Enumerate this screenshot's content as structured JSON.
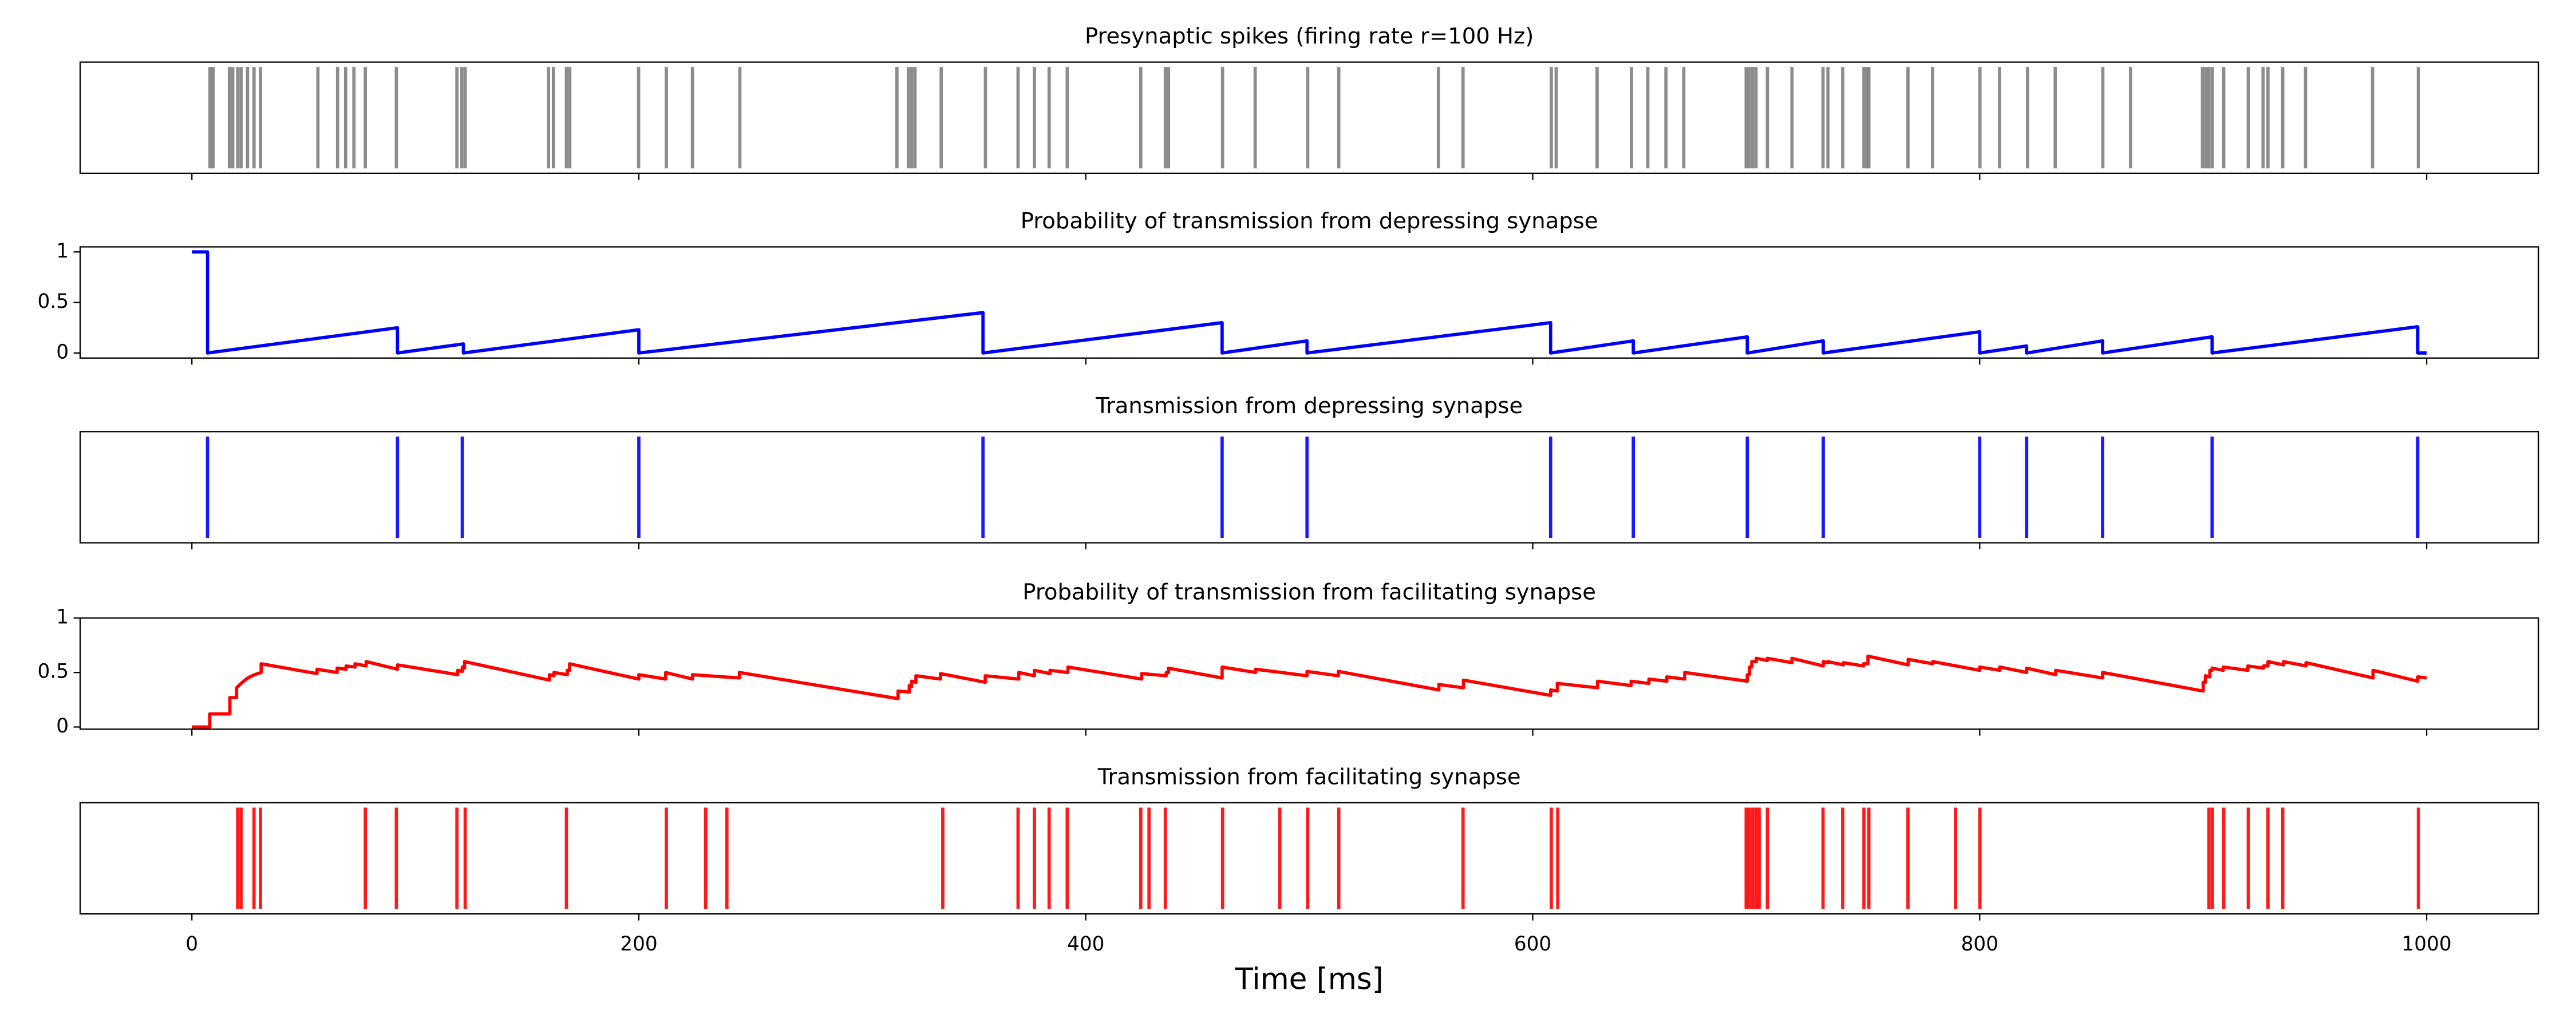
{
  "chart_data": [
    {
      "type": "eventplot",
      "title": "Presynaptic spikes (firing rate r=100 Hz)",
      "color": "#808080",
      "events": [
        8.1,
        9.5,
        16.8,
        18.3,
        20.5,
        22.0,
        24.9,
        27.8,
        30.7,
        56.4,
        65.2,
        68.8,
        72.5,
        77.6,
        91.5,
        118.6,
        120.8,
        122.3,
        159.6,
        161.8,
        167.6,
        169.1,
        199.9,
        212.3,
        224.0,
        245.2,
        315.5,
        320.6,
        322.1,
        323.6,
        335.3,
        355.1,
        369.7,
        377.0,
        383.6,
        391.7,
        424.6,
        435.6,
        437.0,
        461.2,
        475.8,
        499.3,
        513.2,
        557.8,
        568.8,
        608.3,
        610.5,
        628.8,
        644.2,
        651.5,
        659.6,
        667.6,
        695.5,
        696.9,
        698.4,
        699.9,
        705.0,
        716.0,
        729.9,
        732.1,
        738.7,
        748.2,
        749.6,
        750.4,
        767.9,
        778.9,
        800.1,
        808.9,
        821.4,
        833.8,
        855.1,
        867.5,
        899.7,
        901.2,
        902.6,
        904.1,
        909.2,
        920.2,
        926.8,
        929.0,
        935.6,
        945.8,
        975.8,
        996.3
      ],
      "xlim": [
        -50,
        1050
      ],
      "xticks": [
        0,
        200,
        400,
        600,
        800,
        1000
      ]
    },
    {
      "type": "line",
      "title": "Probability of transmission from depressing synapse",
      "color": "#0000ff",
      "x": [
        0,
        7,
        7,
        92,
        92,
        121.5,
        121.5,
        200,
        200,
        354,
        354,
        461,
        461,
        499,
        499,
        608,
        608,
        645,
        645,
        696,
        696,
        730,
        730,
        800,
        800,
        821,
        821,
        855,
        855,
        904,
        904,
        996,
        996,
        1000
      ],
      "values": [
        1,
        1,
        0,
        0.25,
        0,
        0.09,
        0,
        0.23,
        0,
        0.4,
        0,
        0.3,
        0,
        0.12,
        0,
        0.3,
        0,
        0.12,
        0,
        0.16,
        0,
        0.12,
        0,
        0.21,
        0,
        0.07,
        0,
        0.12,
        0,
        0.16,
        0,
        0.26,
        0,
        0
      ],
      "xlim": [
        -50,
        1050
      ],
      "xticks": [
        0,
        200,
        400,
        600,
        800,
        1000
      ],
      "ylim": [
        -0.05,
        1.05
      ],
      "yticks": [
        0,
        0.5,
        1
      ]
    },
    {
      "type": "eventplot",
      "title": "Transmission from depressing synapse",
      "color": "#0000ff",
      "events": [
        7,
        92,
        121,
        200,
        354,
        461,
        499,
        608,
        645,
        696,
        730,
        800,
        821,
        855,
        904,
        996
      ],
      "xlim": [
        -50,
        1050
      ],
      "xticks": [
        0,
        200,
        400,
        600,
        800,
        1000
      ]
    },
    {
      "type": "line",
      "title": "Probability of transmission from facilitating synapse",
      "color": "#ff0000",
      "x": [
        0,
        8,
        8,
        17,
        17,
        20,
        20,
        22,
        25,
        28,
        31,
        31,
        56,
        56,
        65,
        65,
        69,
        69,
        73,
        73,
        78,
        78,
        92,
        92,
        119,
        119,
        121,
        121,
        122,
        122,
        160,
        160,
        162,
        162,
        168,
        168,
        169,
        169,
        200,
        200,
        212,
        212,
        224,
        224,
        245,
        245,
        316,
        316,
        321,
        321,
        322,
        322,
        324,
        324,
        335,
        335,
        355,
        355,
        370,
        370,
        377,
        377,
        384,
        384,
        392,
        392,
        425,
        425,
        436,
        436,
        437,
        437,
        461,
        461,
        476,
        476,
        499,
        499,
        513,
        513,
        558,
        558,
        569,
        569,
        608,
        608,
        611,
        611,
        629,
        629,
        644,
        644,
        652,
        652,
        660,
        660,
        668,
        668,
        696,
        696,
        697,
        697,
        698,
        698,
        700,
        700,
        705,
        705,
        716,
        716,
        730,
        730,
        732,
        732,
        739,
        739,
        748,
        748,
        750,
        750,
        768,
        768,
        779,
        779,
        800,
        800,
        809,
        809,
        821,
        821,
        834,
        834,
        855,
        855,
        900,
        900,
        901,
        901,
        903,
        903,
        904,
        904,
        909,
        909,
        920,
        920,
        927,
        927,
        929,
        929,
        936,
        936,
        946,
        946,
        976,
        976,
        996,
        996,
        1000
      ],
      "values": [
        0,
        0,
        0.12,
        0.12,
        0.27,
        0.27,
        0.36,
        0.4,
        0.45,
        0.48,
        0.5,
        0.58,
        0.49,
        0.53,
        0.5,
        0.54,
        0.53,
        0.56,
        0.55,
        0.58,
        0.56,
        0.6,
        0.53,
        0.57,
        0.48,
        0.52,
        0.51,
        0.55,
        0.54,
        0.6,
        0.43,
        0.48,
        0.47,
        0.5,
        0.48,
        0.52,
        0.52,
        0.58,
        0.44,
        0.48,
        0.44,
        0.5,
        0.44,
        0.48,
        0.45,
        0.5,
        0.26,
        0.33,
        0.32,
        0.38,
        0.37,
        0.42,
        0.41,
        0.47,
        0.44,
        0.49,
        0.41,
        0.47,
        0.44,
        0.5,
        0.47,
        0.52,
        0.49,
        0.52,
        0.5,
        0.55,
        0.44,
        0.49,
        0.47,
        0.5,
        0.5,
        0.54,
        0.45,
        0.55,
        0.5,
        0.53,
        0.47,
        0.51,
        0.47,
        0.51,
        0.34,
        0.39,
        0.36,
        0.43,
        0.29,
        0.34,
        0.33,
        0.4,
        0.36,
        0.42,
        0.38,
        0.42,
        0.4,
        0.44,
        0.42,
        0.46,
        0.44,
        0.5,
        0.42,
        0.48,
        0.48,
        0.55,
        0.55,
        0.6,
        0.6,
        0.63,
        0.61,
        0.63,
        0.59,
        0.63,
        0.56,
        0.6,
        0.59,
        0.6,
        0.57,
        0.59,
        0.56,
        0.58,
        0.58,
        0.65,
        0.57,
        0.62,
        0.58,
        0.6,
        0.52,
        0.55,
        0.52,
        0.55,
        0.5,
        0.54,
        0.48,
        0.52,
        0.45,
        0.5,
        0.33,
        0.41,
        0.41,
        0.47,
        0.46,
        0.52,
        0.52,
        0.54,
        0.52,
        0.55,
        0.52,
        0.56,
        0.54,
        0.56,
        0.56,
        0.6,
        0.57,
        0.6,
        0.56,
        0.59,
        0.45,
        0.52,
        0.42,
        0.46,
        0.45
      ],
      "xlim": [
        -50,
        1050
      ],
      "xticks": [
        0,
        200,
        400,
        600,
        800,
        1000
      ],
      "ylim": [
        -0.02,
        1
      ],
      "yticks": [
        0,
        0.5,
        1
      ]
    },
    {
      "type": "eventplot",
      "title": "Transmission from facilitating synapse",
      "color": "#ff0000",
      "events": [
        20.5,
        22,
        27.8,
        30.7,
        77.6,
        91.5,
        118.6,
        122.3,
        167.6,
        212.3,
        229.9,
        239.4,
        336,
        369.7,
        377,
        383.6,
        391.7,
        424.6,
        428.3,
        435.6,
        461.2,
        486.8,
        499.3,
        513.2,
        568.8,
        608.3,
        611.2,
        695.5,
        696.9,
        698.4,
        699.9,
        701.3,
        705,
        729.9,
        738.7,
        748.2,
        750.4,
        767.9,
        789.2,
        800.1,
        902.6,
        904.1,
        909.2,
        920.2,
        929,
        935.6,
        996.3
      ],
      "xlim": [
        -50,
        1050
      ],
      "xticks": [
        0,
        200,
        400,
        600,
        800,
        1000
      ],
      "xlabel": "Time [ms]"
    }
  ]
}
